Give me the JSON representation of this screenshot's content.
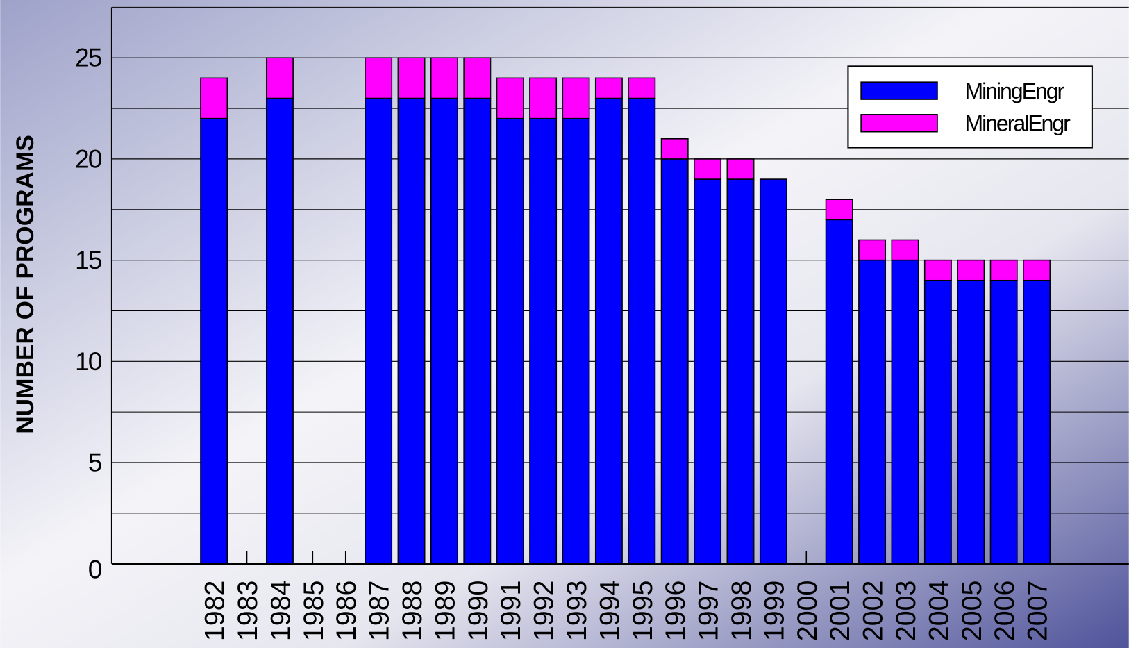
{
  "chart_data": {
    "type": "stacked_bar",
    "y_label": "NUMBER OF PROGRAMS",
    "categories": [
      "1982",
      "1983",
      "1984",
      "1985",
      "1986",
      "1987",
      "1988",
      "1989",
      "1990",
      "1991",
      "1992",
      "1993",
      "1994",
      "1995",
      "1996",
      "1997",
      "1998",
      "1999",
      "2000",
      "2001",
      "2002",
      "2003",
      "2004",
      "2005",
      "2006",
      "2007"
    ],
    "series": [
      {
        "name": "MiningEngr",
        "color": "#0000ff",
        "values": [
          22,
          null,
          23,
          null,
          null,
          23,
          23,
          23,
          23,
          22,
          22,
          22,
          23,
          23,
          20,
          19,
          19,
          19,
          null,
          17,
          15,
          15,
          14,
          14,
          14,
          14
        ]
      },
      {
        "name": "MineralEngr",
        "color": "#ff00ff",
        "values": [
          2,
          null,
          2,
          null,
          null,
          2,
          2,
          2,
          2,
          2,
          2,
          2,
          1,
          1,
          1,
          1,
          1,
          0,
          null,
          1,
          1,
          1,
          1,
          1,
          1,
          1
        ]
      }
    ],
    "ylim": [
      0,
      27.5
    ],
    "yticks": [
      0,
      5,
      10,
      15,
      20,
      25
    ],
    "minor_yticks": [
      2.5,
      7.5,
      12.5,
      17.5,
      22.5,
      27.5
    ],
    "grid": true,
    "legend": "upper right"
  }
}
